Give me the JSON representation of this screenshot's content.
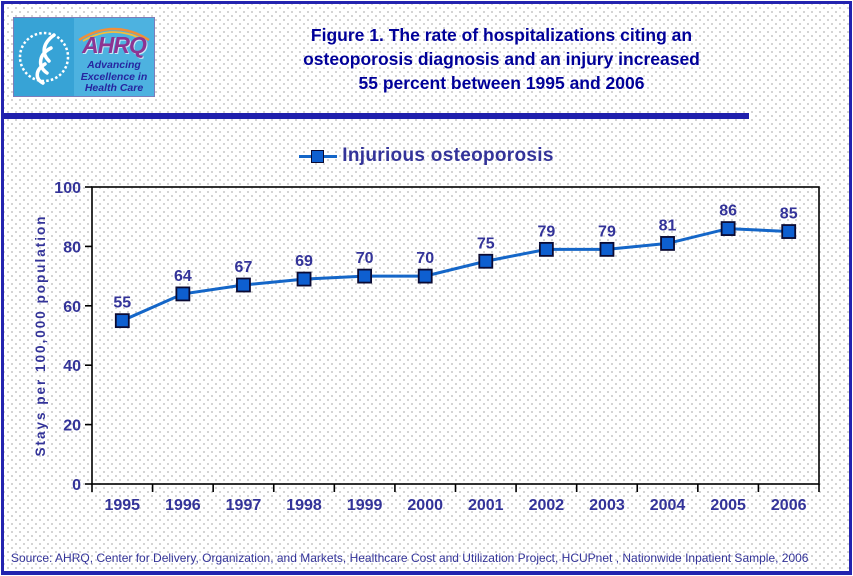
{
  "theme": {
    "page_border": "#2323af",
    "divider": "#2020ad",
    "title_text": "#000099",
    "chart_text": "#333399",
    "source_text": "#333399",
    "dot": "#c6c6c6",
    "series_line": "#1466c8",
    "marker_fill": "#0e5fd0",
    "marker_border": "#0a0a33",
    "logo_cyan_dark": "#37a3d6",
    "logo_cyan_light": "#4db2e0",
    "logo_purple": "#8d3492",
    "logo_navy": "#2626a0"
  },
  "header": {
    "logo": {
      "org_abbrev": "AHRQ",
      "tagline_lines": [
        "Advancing",
        "Excellence in",
        "Health Care"
      ]
    },
    "title_lines": [
      "Figure 1. The rate of hospitalizations citing an",
      "osteoporosis diagnosis and an injury increased",
      "55 percent between 1995 and 2006"
    ]
  },
  "legend": {
    "label": "Injurious osteoporosis"
  },
  "chart_data": {
    "type": "line",
    "title": "Figure 1. The rate of hospitalizations citing an osteoporosis diagnosis and an injury increased 55 percent between 1995 and 2006",
    "categories": [
      "1995",
      "1996",
      "1997",
      "1998",
      "1999",
      "2000",
      "2001",
      "2002",
      "2003",
      "2004",
      "2005",
      "2006"
    ],
    "series": [
      {
        "name": "Injurious osteoporosis",
        "values": [
          55,
          64,
          67,
          69,
          70,
          70,
          75,
          79,
          79,
          81,
          86,
          85
        ]
      }
    ],
    "xlabel": "",
    "ylabel": "Stays per 100,000 population",
    "ylim": [
      0,
      100
    ],
    "yticks": [
      0,
      20,
      40,
      60,
      80,
      100
    ],
    "grid": false,
    "legend_position": "top",
    "data_labels": true,
    "marker": "square",
    "colors": {
      "line": "#1466c8",
      "marker_fill": "#0e5fd0",
      "marker_border": "#0a0a33",
      "axis": "#000000",
      "label_text": "#333399"
    }
  },
  "footer": {
    "source": "Source: AHRQ, Center for Delivery, Organization, and Markets, Healthcare Cost and Utilization Project, HCUPnet , Nationwide Inpatient Sample, 2006"
  }
}
